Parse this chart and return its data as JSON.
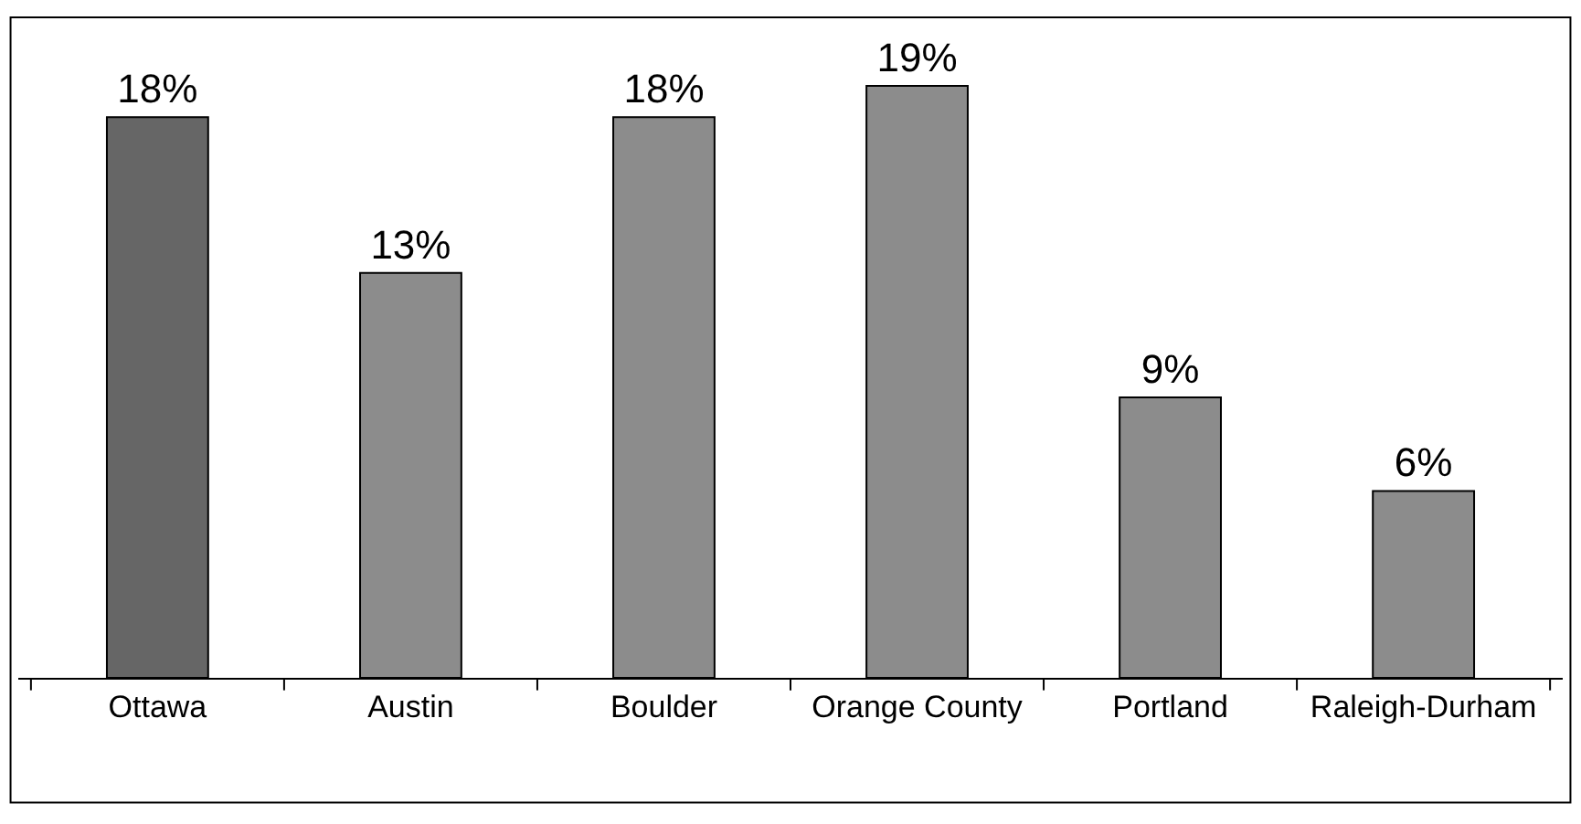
{
  "chart_data": {
    "type": "bar",
    "categories": [
      "Ottawa",
      "Austin",
      "Boulder",
      "Orange County",
      "Portland",
      "Raleigh-Durham"
    ],
    "values": [
      18,
      13,
      18,
      19,
      9,
      6
    ],
    "colors": [
      "#666666",
      "#8c8c8c",
      "#8c8c8c",
      "#8c8c8c",
      "#8c8c8c",
      "#8c8c8c"
    ],
    "value_labels": [
      "18%",
      "13%",
      "18%",
      "19%",
      "9%",
      "6%"
    ],
    "legend": false
  }
}
